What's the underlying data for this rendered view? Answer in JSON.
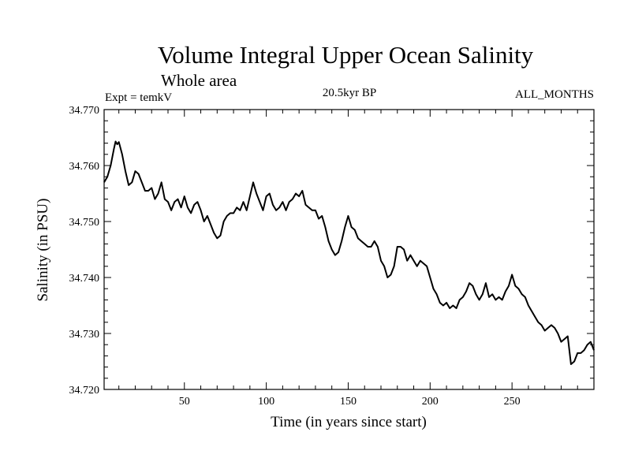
{
  "chart_data": {
    "type": "line",
    "title": "Volume Integral Upper Ocean Salinity",
    "subtitle": "Whole area",
    "header_left": "Expt = temkV",
    "header_center": "20.5kyr BP",
    "header_right": "ALL_MONTHS",
    "xlabel": "Time (in years since start)",
    "ylabel": "Salinity (in PSU)",
    "xlim": [
      1,
      300
    ],
    "ylim": [
      34.72,
      34.77
    ],
    "xticks": [
      50,
      100,
      150,
      200,
      250
    ],
    "yticks": [
      "34.720",
      "34.730",
      "34.740",
      "34.750",
      "34.760",
      "34.770"
    ],
    "series": [
      {
        "name": "Salinity",
        "color": "#000000",
        "x": [
          1,
          3,
          5,
          7,
          8,
          9,
          10,
          12,
          14,
          16,
          18,
          20,
          22,
          24,
          26,
          28,
          30,
          32,
          34,
          36,
          38,
          40,
          42,
          44,
          46,
          48,
          50,
          52,
          54,
          56,
          58,
          60,
          62,
          64,
          66,
          68,
          70,
          72,
          74,
          76,
          78,
          80,
          82,
          84,
          86,
          88,
          90,
          92,
          94,
          96,
          98,
          100,
          102,
          104,
          106,
          108,
          110,
          112,
          114,
          116,
          118,
          120,
          122,
          124,
          126,
          128,
          130,
          132,
          134,
          136,
          138,
          140,
          142,
          144,
          146,
          148,
          150,
          152,
          154,
          156,
          158,
          160,
          162,
          164,
          166,
          168,
          170,
          172,
          174,
          176,
          178,
          180,
          182,
          184,
          186,
          188,
          190,
          192,
          194,
          196,
          198,
          200,
          202,
          204,
          206,
          208,
          210,
          212,
          214,
          216,
          218,
          220,
          222,
          224,
          226,
          228,
          230,
          232,
          234,
          236,
          238,
          240,
          242,
          244,
          246,
          248,
          250,
          252,
          254,
          256,
          258,
          260,
          262,
          264,
          266,
          268,
          270,
          272,
          274,
          276,
          278,
          280,
          282,
          284,
          286,
          288,
          290,
          292,
          294,
          296,
          298,
          300
        ],
        "values": [
          34.757,
          34.758,
          34.76,
          34.763,
          34.7643,
          34.7638,
          34.7642,
          34.762,
          34.759,
          34.7565,
          34.757,
          34.759,
          34.7585,
          34.757,
          34.7555,
          34.7555,
          34.756,
          34.754,
          34.755,
          34.757,
          34.754,
          34.7535,
          34.752,
          34.7535,
          34.754,
          34.7525,
          34.7545,
          34.7525,
          34.7515,
          34.753,
          34.7535,
          34.752,
          34.75,
          34.751,
          34.7495,
          34.748,
          34.747,
          34.7475,
          34.75,
          34.751,
          34.7515,
          34.7515,
          34.7525,
          34.752,
          34.7535,
          34.752,
          34.7545,
          34.757,
          34.755,
          34.7535,
          34.752,
          34.7545,
          34.755,
          34.753,
          34.752,
          34.7525,
          34.7535,
          34.752,
          34.7535,
          34.754,
          34.755,
          34.7545,
          34.7555,
          34.753,
          34.7525,
          34.752,
          34.752,
          34.7505,
          34.751,
          34.749,
          34.7465,
          34.745,
          34.744,
          34.7445,
          34.7465,
          34.749,
          34.751,
          34.749,
          34.7485,
          34.747,
          34.7465,
          34.746,
          34.7455,
          34.7455,
          34.7465,
          34.7455,
          34.743,
          34.742,
          34.74,
          34.7405,
          34.742,
          34.7455,
          34.7455,
          34.745,
          34.743,
          34.744,
          34.743,
          34.742,
          34.743,
          34.7425,
          34.742,
          34.74,
          34.738,
          34.737,
          34.7355,
          34.735,
          34.7355,
          34.7345,
          34.735,
          34.7345,
          34.736,
          34.7365,
          34.7375,
          34.739,
          34.7385,
          34.737,
          34.736,
          34.737,
          34.739,
          34.7365,
          34.737,
          34.736,
          34.7365,
          34.736,
          34.7375,
          34.7385,
          34.7405,
          34.7385,
          34.738,
          34.737,
          34.7365,
          34.735,
          34.734,
          34.733,
          34.732,
          34.7315,
          34.7305,
          34.731,
          34.7315,
          34.731,
          34.73,
          34.7285,
          34.729,
          34.7295,
          34.7245,
          34.725,
          34.7265,
          34.7265,
          34.727,
          34.728,
          34.7285,
          34.727
        ]
      }
    ]
  }
}
